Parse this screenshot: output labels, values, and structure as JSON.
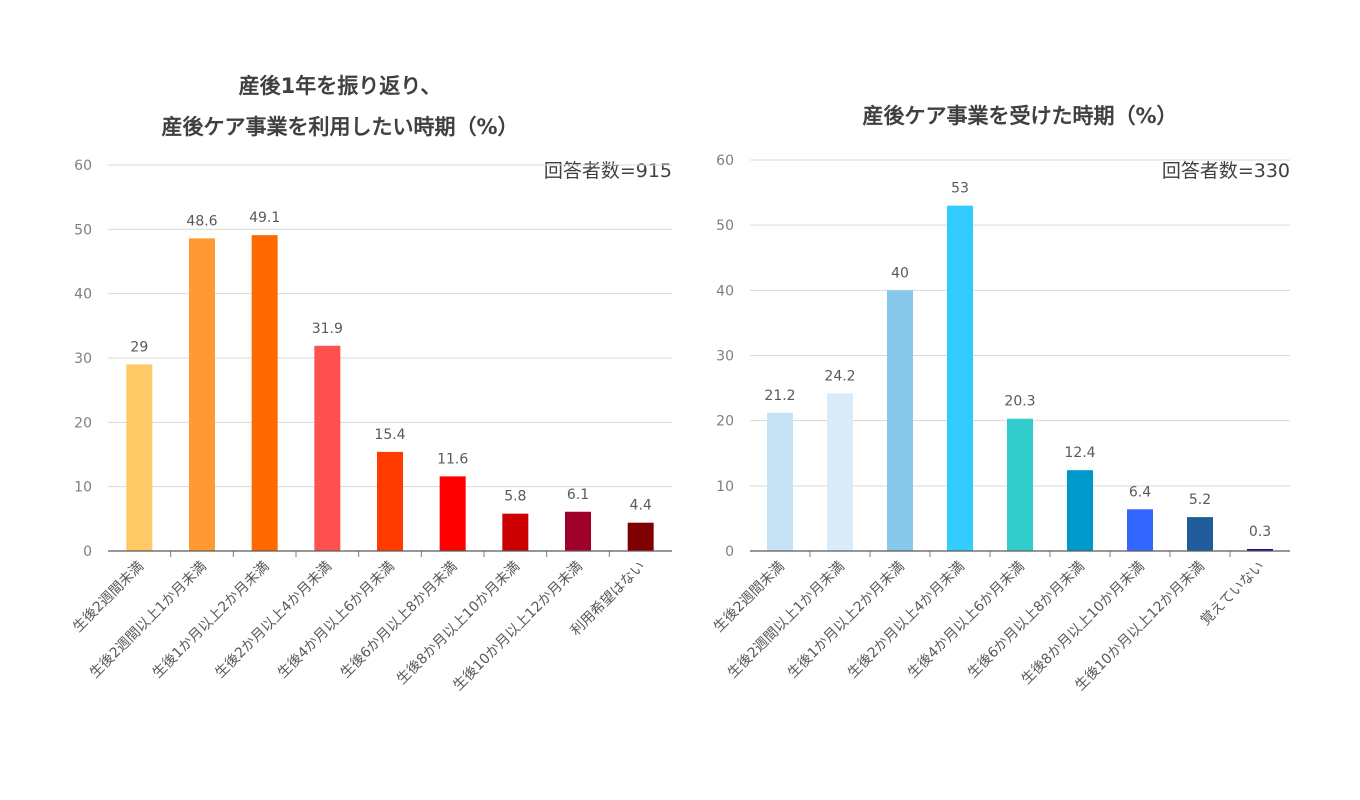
{
  "chart_data": [
    {
      "type": "bar",
      "title_lines": [
        "産後1年を振り返り、",
        "産後ケア事業を利用したい時期（%）"
      ],
      "respondents": "回答者数=915",
      "ylim": [
        0,
        60
      ],
      "yticks": [
        0,
        10,
        20,
        30,
        40,
        50,
        60
      ],
      "grid": true,
      "categories": [
        "生後2週間未満",
        "生後2週間以上1か月未満",
        "生後1か月以上2か月未満",
        "生後2か月以上4か月未満",
        "生後4か月以上6か月未満",
        "生後6か月以上8か月未満",
        "生後8か月以上10か月未満",
        "生後10か月以上12か月未満",
        "利用希望はない"
      ],
      "values": [
        29,
        48.6,
        49.1,
        31.9,
        15.4,
        11.6,
        5.8,
        6.1,
        4.4
      ],
      "value_labels": [
        "29",
        "48.6",
        "49.1",
        "31.9",
        "15.4",
        "11.6",
        "5.8",
        "6.1",
        "4.4"
      ],
      "colors": [
        "#FFC966",
        "#FF9933",
        "#FF6A00",
        "#FF5050",
        "#FF3B00",
        "#FF0000",
        "#CC0000",
        "#A0002A",
        "#7F0000"
      ]
    },
    {
      "type": "bar",
      "title_lines": [
        "産後ケア事業を受けた時期（%）"
      ],
      "respondents": "回答者数=330",
      "ylim": [
        0,
        60
      ],
      "yticks": [
        0,
        10,
        20,
        30,
        40,
        50,
        60
      ],
      "grid": true,
      "categories": [
        "生後2週間未満",
        "生後2週間以上1か月未満",
        "生後1か月以上2か月未満",
        "生後2か月以上4か月未満",
        "生後4か月以上6か月未満",
        "生後6か月以上8か月未満",
        "生後8か月以上10か月未満",
        "生後10か月以上12か月未満",
        "覚えていない"
      ],
      "values": [
        21.2,
        24.2,
        40,
        53,
        20.3,
        12.4,
        6.4,
        5.2,
        0.3
      ],
      "value_labels": [
        "21.2",
        "24.2",
        "40",
        "53",
        "20.3",
        "12.4",
        "6.4",
        "5.2",
        "0.3"
      ],
      "colors": [
        "#C5E3F5",
        "#DCEBF8",
        "#85C8EA",
        "#33CCFF",
        "#33CCCC",
        "#0099CC",
        "#3366FF",
        "#1F5C99",
        "#0A0A8C"
      ]
    }
  ]
}
